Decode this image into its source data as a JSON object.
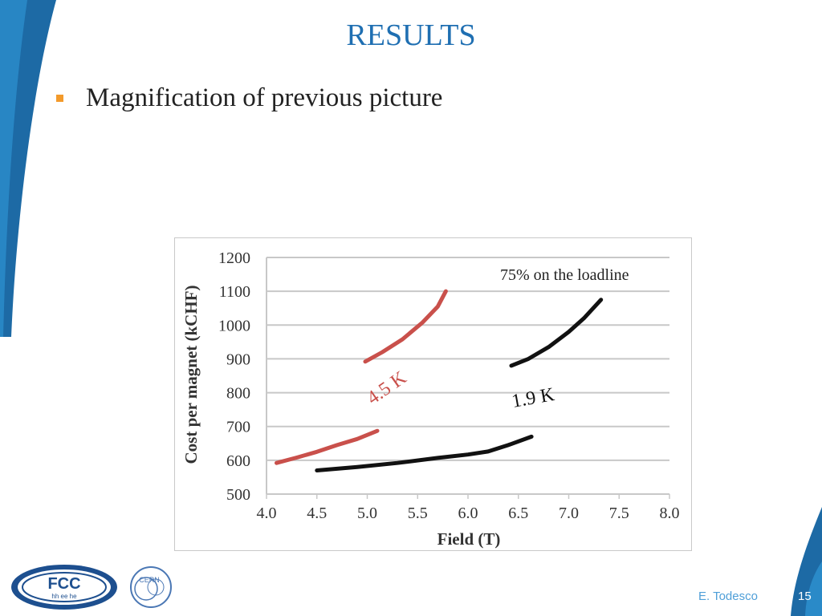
{
  "slide": {
    "title": "RESULTS",
    "bullet": "Magnification of previous picture",
    "author": "E. Todesco",
    "page_number": "15"
  },
  "logos": {
    "fcc_text": "FCC",
    "fcc_subtext": "hh ee he",
    "cern_text": "CERN"
  },
  "colors": {
    "title": "#1f6fb2",
    "bullet_marker": "#f39a2b",
    "series_4_5K": "#c9504b",
    "series_1_9K": "#111111",
    "deco_blue": "#1d6aa5"
  },
  "chart_data": {
    "type": "line",
    "xlabel": "Field (T)",
    "ylabel": "Cost per magnet (kCHF)",
    "xlim": [
      4.0,
      8.0
    ],
    "ylim": [
      500,
      1200
    ],
    "xticks": [
      "4.0",
      "4.5",
      "5.0",
      "5.5",
      "6.0",
      "6.5",
      "7.0",
      "7.5",
      "8.0"
    ],
    "yticks": [
      "500",
      "600",
      "700",
      "800",
      "900",
      "1000",
      "1100",
      "1200"
    ],
    "grid": "horizontal",
    "annotation": "75% on the loadline",
    "series": [
      {
        "name": "4.5 K",
        "color": "#c9504b",
        "segments": [
          [
            [
              4.1,
              592
            ],
            [
              4.3,
              608
            ],
            [
              4.5,
              625
            ],
            [
              4.7,
              645
            ],
            [
              4.9,
              663
            ],
            [
              5.1,
              687
            ]
          ],
          [
            [
              4.98,
              892
            ],
            [
              5.15,
              920
            ],
            [
              5.35,
              958
            ],
            [
              5.55,
              1008
            ],
            [
              5.7,
              1055
            ],
            [
              5.78,
              1100
            ]
          ]
        ]
      },
      {
        "name": "1.9 K",
        "color": "#111111",
        "segments": [
          [
            [
              4.5,
              570
            ],
            [
              4.9,
              580
            ],
            [
              5.3,
              592
            ],
            [
              5.7,
              607
            ],
            [
              6.0,
              617
            ],
            [
              6.2,
              626
            ],
            [
              6.4,
              645
            ],
            [
              6.63,
              670
            ]
          ],
          [
            [
              6.43,
              880
            ],
            [
              6.6,
              900
            ],
            [
              6.8,
              935
            ],
            [
              7.0,
              980
            ],
            [
              7.15,
              1020
            ],
            [
              7.32,
              1075
            ]
          ]
        ]
      }
    ]
  }
}
